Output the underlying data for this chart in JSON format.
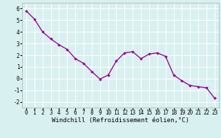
{
  "x": [
    0,
    1,
    2,
    3,
    4,
    5,
    6,
    7,
    8,
    9,
    10,
    11,
    12,
    13,
    14,
    15,
    16,
    17,
    18,
    19,
    20,
    21,
    22,
    23
  ],
  "y": [
    5.8,
    5.1,
    4.0,
    3.4,
    2.9,
    2.5,
    1.7,
    1.3,
    0.6,
    -0.05,
    0.3,
    1.5,
    2.2,
    2.3,
    1.7,
    2.1,
    2.2,
    1.9,
    0.3,
    -0.2,
    -0.6,
    -0.7,
    -0.8,
    -1.7
  ],
  "line_color": "#990099",
  "marker": "D",
  "marker_size": 1.8,
  "bg_color": "#d8f0f0",
  "grid_color": "#ffffff",
  "xlabel": "Windchill (Refroidissement éolien,°C)",
  "xlabel_fontsize": 6.5,
  "ylabel_ticks": [
    -2,
    -1,
    0,
    1,
    2,
    3,
    4,
    5,
    6
  ],
  "xtick_labels": [
    "0",
    "1",
    "2",
    "3",
    "4",
    "5",
    "6",
    "7",
    "8",
    "9",
    "10",
    "11",
    "12",
    "13",
    "14",
    "15",
    "16",
    "17",
    "18",
    "19",
    "20",
    "21",
    "22",
    "23"
  ],
  "xlim": [
    -0.5,
    23.5
  ],
  "ylim": [
    -2.5,
    6.5
  ],
  "tick_fontsize": 5.5,
  "line_width": 1.0
}
